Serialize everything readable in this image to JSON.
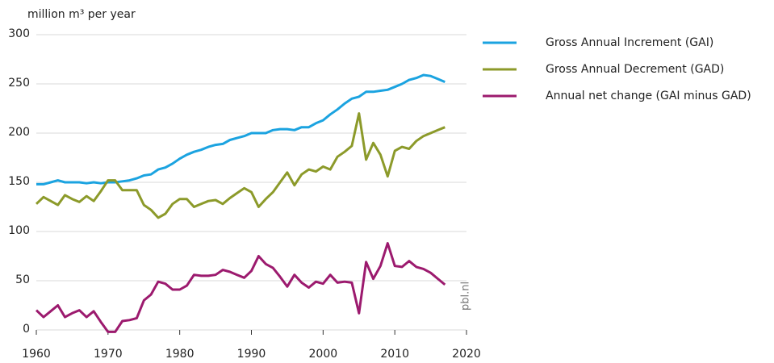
{
  "chart_data": {
    "type": "line",
    "ylabel": "million m³ per year",
    "annotation": "pbl.nl",
    "x": [
      1960,
      1961,
      1962,
      1963,
      1964,
      1965,
      1966,
      1967,
      1968,
      1969,
      1970,
      1971,
      1972,
      1973,
      1974,
      1975,
      1976,
      1977,
      1978,
      1979,
      1980,
      1981,
      1982,
      1983,
      1984,
      1985,
      1986,
      1987,
      1988,
      1989,
      1990,
      1991,
      1992,
      1993,
      1994,
      1995,
      1996,
      1997,
      1998,
      1999,
      2000,
      2001,
      2002,
      2003,
      2004,
      2005,
      2006,
      2007,
      2008,
      2009,
      2010,
      2011,
      2012,
      2013,
      2014,
      2015,
      2016,
      2017
    ],
    "series": [
      {
        "name": "Gross Annual Increment (GAI)",
        "color": "#1ba3e0",
        "values": [
          148,
          148,
          150,
          152,
          150,
          150,
          150,
          149,
          150,
          149,
          150,
          150,
          151,
          152,
          154,
          157,
          158,
          163,
          165,
          169,
          174,
          178,
          181,
          183,
          186,
          188,
          189,
          193,
          195,
          197,
          200,
          200,
          200,
          203,
          204,
          204,
          203,
          206,
          206,
          210,
          213,
          219,
          224,
          230,
          235,
          237,
          242,
          242,
          243,
          244,
          247,
          250,
          254,
          256,
          259,
          258,
          255,
          252
        ]
      },
      {
        "name": "Gross Annual Decrement (GAD)",
        "color": "#8c9a2a",
        "values": [
          128,
          135,
          131,
          127,
          137,
          133,
          130,
          136,
          131,
          141,
          152,
          152,
          142,
          142,
          142,
          127,
          122,
          114,
          118,
          128,
          133,
          133,
          125,
          128,
          131,
          132,
          128,
          134,
          139,
          144,
          140,
          125,
          133,
          140,
          150,
          160,
          147,
          158,
          163,
          161,
          166,
          163,
          176,
          181,
          187,
          220,
          173,
          190,
          178,
          156,
          182,
          186,
          184,
          192,
          197,
          200,
          203,
          206
        ]
      },
      {
        "name": "Annual net change (GAI minus GAD)",
        "color": "#9c1a6e",
        "values": [
          20,
          13,
          19,
          25,
          13,
          17,
          20,
          13,
          19,
          8,
          -2,
          -2,
          9,
          10,
          12,
          30,
          36,
          49,
          47,
          41,
          41,
          45,
          56,
          55,
          55,
          56,
          61,
          59,
          56,
          53,
          60,
          75,
          67,
          63,
          54,
          44,
          56,
          48,
          43,
          49,
          47,
          56,
          48,
          49,
          48,
          17,
          69,
          52,
          65,
          88,
          65,
          64,
          70,
          64,
          62,
          58,
          52,
          46
        ]
      }
    ],
    "xlim": [
      1960,
      2020
    ],
    "xticks": [
      1960,
      1970,
      1980,
      1990,
      2000,
      2010,
      2020
    ],
    "ylim": [
      0,
      300
    ],
    "yticks": [
      0,
      50,
      100,
      150,
      200,
      250,
      300
    ],
    "grid": true,
    "legend": "right"
  }
}
